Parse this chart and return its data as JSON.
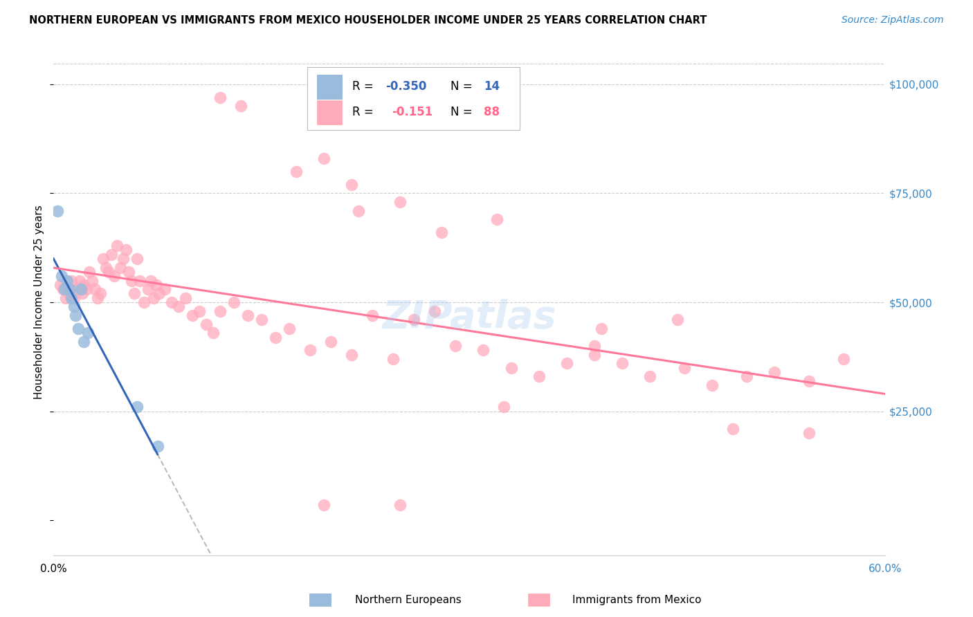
{
  "title": "NORTHERN EUROPEAN VS IMMIGRANTS FROM MEXICO HOUSEHOLDER INCOME UNDER 25 YEARS CORRELATION CHART",
  "source": "Source: ZipAtlas.com",
  "ylabel": "Householder Income Under 25 years",
  "yticks": [
    0,
    25000,
    50000,
    75000,
    100000
  ],
  "ytick_labels": [
    "",
    "$25,000",
    "$50,000",
    "$75,000",
    "$100,000"
  ],
  "xmin": 0.0,
  "xmax": 0.6,
  "ymin": -8000,
  "ymax": 108000,
  "color_blue": "#99BBDD",
  "color_pink": "#FFAABB",
  "color_blue_line": "#3366BB",
  "color_pink_line": "#FF7799",
  "color_dashed": "#BBBBBB",
  "northern_x": [
    0.003,
    0.006,
    0.008,
    0.01,
    0.012,
    0.013,
    0.015,
    0.016,
    0.018,
    0.02,
    0.022,
    0.025,
    0.06,
    0.075
  ],
  "northern_y": [
    71000,
    56000,
    53000,
    55000,
    53000,
    51000,
    49000,
    47000,
    44000,
    53000,
    41000,
    43000,
    26000,
    17000
  ],
  "mexico_x": [
    0.005,
    0.007,
    0.009,
    0.011,
    0.013,
    0.015,
    0.017,
    0.019,
    0.021,
    0.022,
    0.024,
    0.026,
    0.028,
    0.03,
    0.032,
    0.034,
    0.036,
    0.038,
    0.04,
    0.042,
    0.044,
    0.046,
    0.048,
    0.05,
    0.052,
    0.054,
    0.056,
    0.058,
    0.06,
    0.062,
    0.065,
    0.068,
    0.07,
    0.072,
    0.074,
    0.076,
    0.08,
    0.085,
    0.09,
    0.095,
    0.1,
    0.105,
    0.11,
    0.115,
    0.12,
    0.13,
    0.14,
    0.15,
    0.16,
    0.17,
    0.185,
    0.2,
    0.215,
    0.23,
    0.245,
    0.26,
    0.275,
    0.29,
    0.31,
    0.33,
    0.35,
    0.37,
    0.39,
    0.41,
    0.43,
    0.455,
    0.475,
    0.5,
    0.52,
    0.545,
    0.57,
    0.175,
    0.195,
    0.215,
    0.28,
    0.32,
    0.22,
    0.25,
    0.12,
    0.135,
    0.325,
    0.39,
    0.395,
    0.45,
    0.49,
    0.545,
    0.195,
    0.25
  ],
  "mexico_y": [
    54000,
    53000,
    51000,
    52000,
    55000,
    51000,
    53000,
    55000,
    52000,
    54000,
    53000,
    57000,
    55000,
    53000,
    51000,
    52000,
    60000,
    58000,
    57000,
    61000,
    56000,
    63000,
    58000,
    60000,
    62000,
    57000,
    55000,
    52000,
    60000,
    55000,
    50000,
    53000,
    55000,
    51000,
    54000,
    52000,
    53000,
    50000,
    49000,
    51000,
    47000,
    48000,
    45000,
    43000,
    48000,
    50000,
    47000,
    46000,
    42000,
    44000,
    39000,
    41000,
    38000,
    47000,
    37000,
    46000,
    48000,
    40000,
    39000,
    35000,
    33000,
    36000,
    38000,
    36000,
    33000,
    35000,
    31000,
    33000,
    34000,
    32000,
    37000,
    80000,
    83000,
    77000,
    66000,
    69000,
    71000,
    73000,
    97000,
    95000,
    26000,
    40000,
    44000,
    46000,
    21000,
    20000,
    3500,
    3500
  ]
}
